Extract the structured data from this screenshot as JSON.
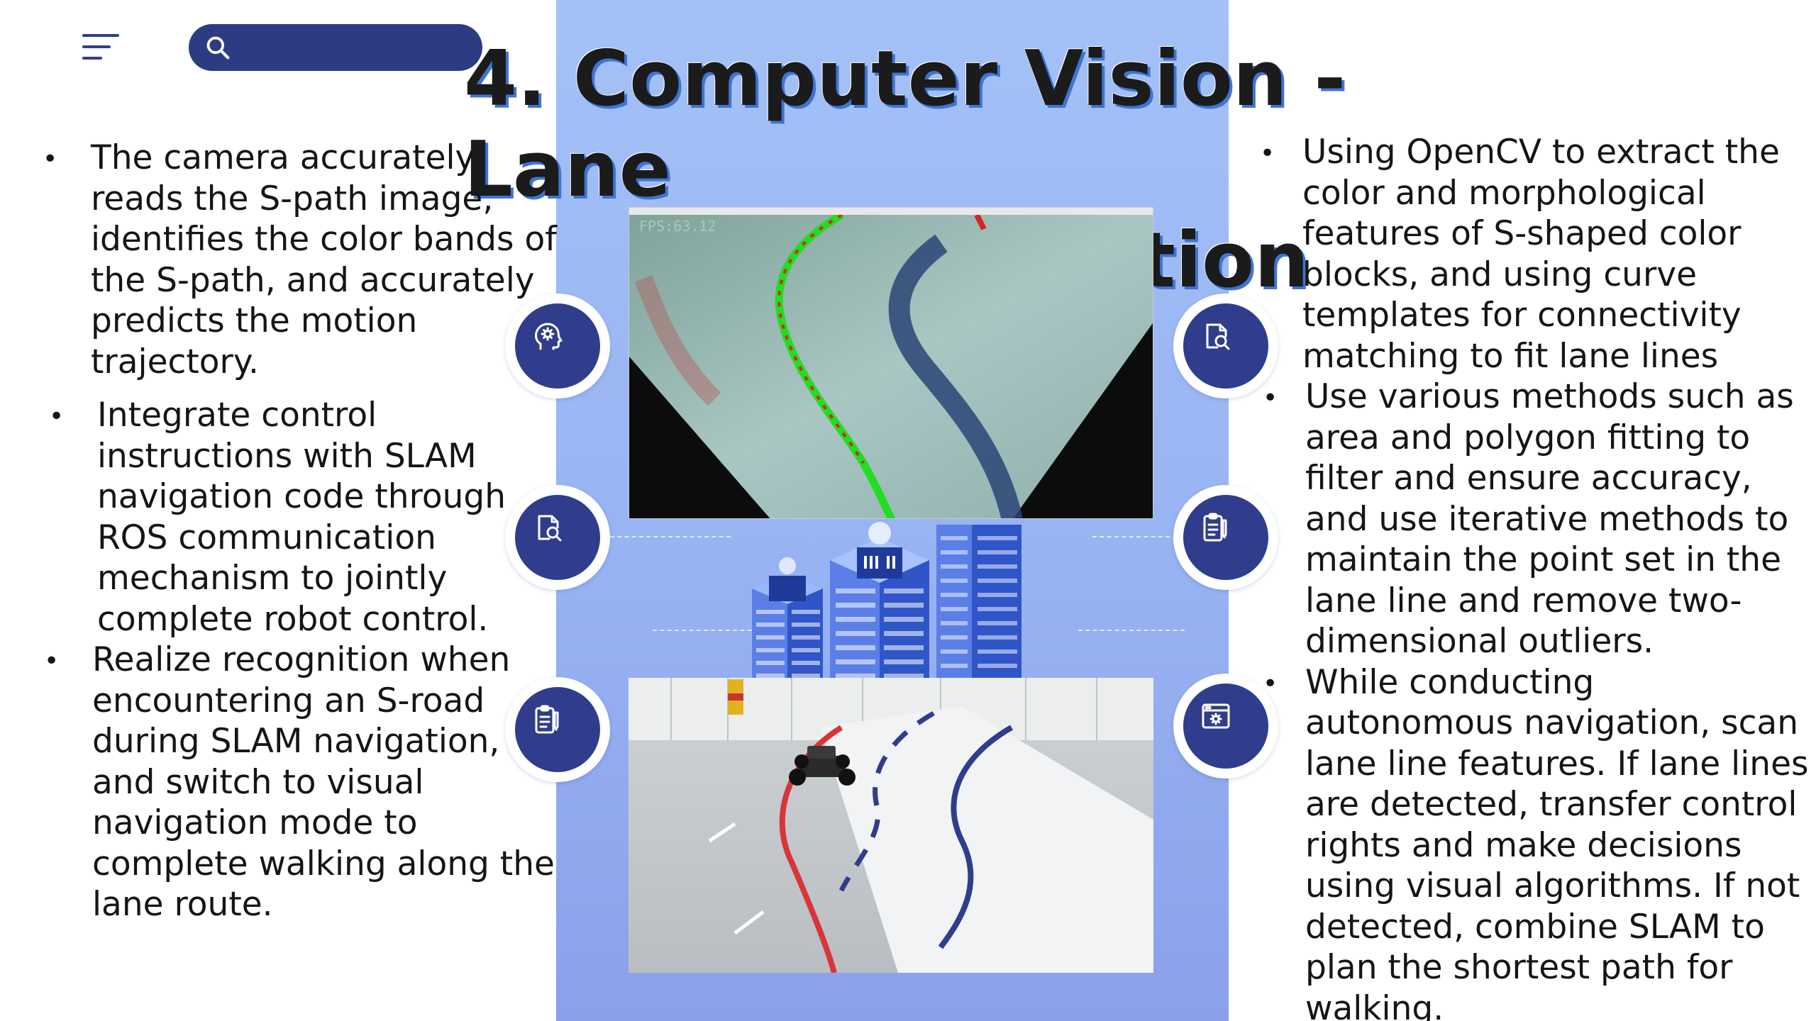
{
  "search": {
    "placeholder": ""
  },
  "title": {
    "line1": "4. Computer Vision - Lane",
    "line2": "Line Detection"
  },
  "left_bullets": [
    "The camera accurately reads the S-path image, identifies the color bands of the S-path, and accurately predicts the motion trajectory.",
    "Integrate control instructions with SLAM navigation code through ROS communication mechanism to jointly complete robot control.",
    "Realize recognition when encountering an S-road during SLAM navigation, and switch to visual navigation mode to complete walking along the lane route."
  ],
  "right_bullets": [
    "Using OpenCV to extract the color and morphological features of S-shaped color blocks, and using curve templates for connectivity matching to fit lane lines",
    "Use various methods such as area and polygon fitting to filter and ensure accuracy, and use iterative methods to maintain the point set in the lane line and remove two-dimensional outliers.",
    "While conducting autonomous navigation, scan lane line features. If lane lines are detected, transfer control rights and make decisions using visual algorithms. If not detected, combine SLAM to plan the shortest path for walking."
  ],
  "photo_top": {
    "fps_text": "FPS:63.12"
  },
  "icons": [
    "brain-head-icon",
    "magnify-document-icon",
    "clipboard-list-icon",
    "magnify-document-icon",
    "clipboard-list-icon",
    "settings-window-icon"
  ],
  "colors": {
    "accent": "#2f3d8c",
    "panel": "#9fbaf5",
    "title_shadow": "#3e74d4"
  }
}
